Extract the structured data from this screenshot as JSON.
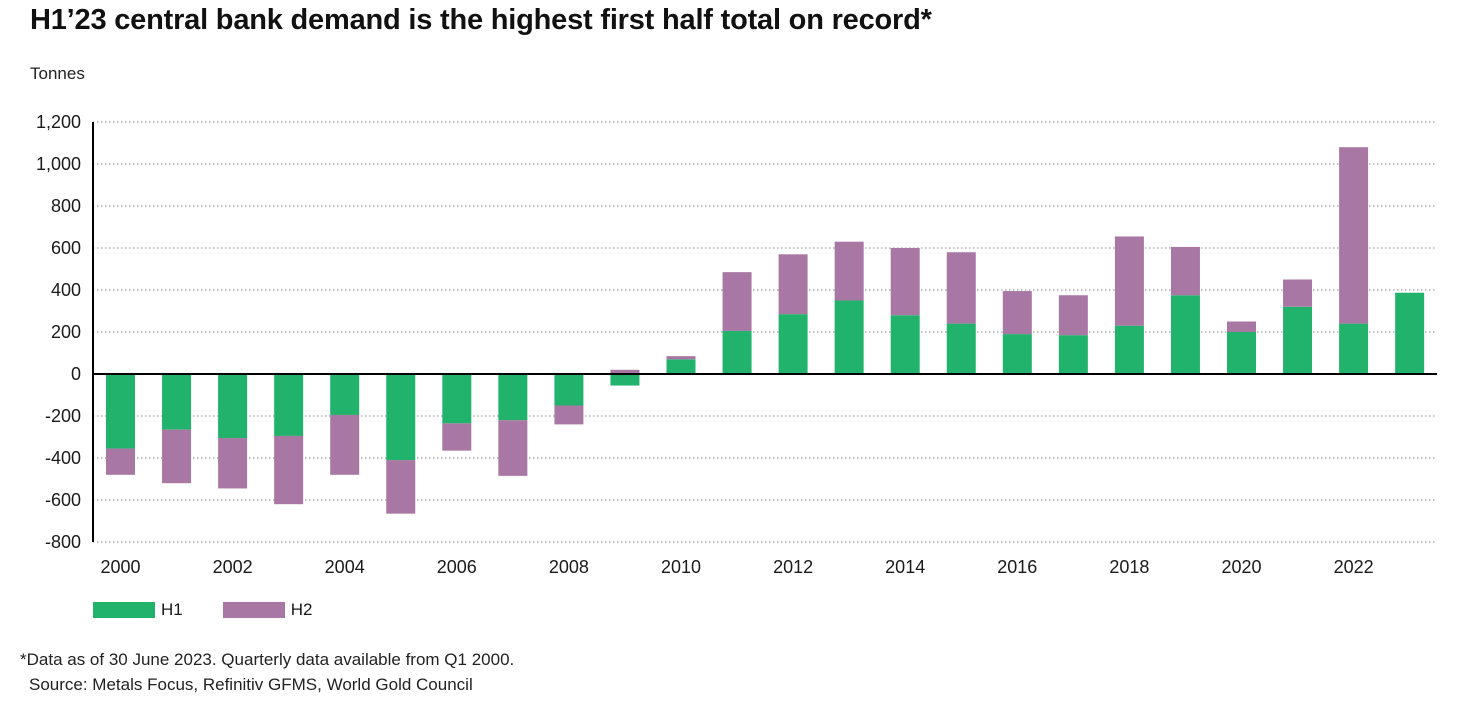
{
  "title": "H1’23 central bank demand is the highest first half total on record*",
  "footnote": "*Data as of 30 June 2023. Quarterly data available from Q1 2000.",
  "source": "Source: Metals Focus, Refinitiv GFMS, World Gold Council",
  "colors": {
    "h1": "#21b36b",
    "h2": "#a877a3",
    "axis": "#000000",
    "grid": "#8a8a8a"
  },
  "chart_data": {
    "type": "bar",
    "stacked": true,
    "ylabel": "Tonnes",
    "xlabel": "",
    "ylim": [
      -800,
      1200
    ],
    "yticks": [
      -800,
      -600,
      -400,
      -200,
      0,
      200,
      400,
      600,
      800,
      1000,
      1200
    ],
    "ytick_labels": [
      "-800",
      "-600",
      "-400",
      "-200",
      "0",
      "200",
      "400",
      "600",
      "800",
      "1,000",
      "1,200"
    ],
    "xtick_labels": [
      "2000",
      "2002",
      "2004",
      "2006",
      "2008",
      "2010",
      "2012",
      "2014",
      "2016",
      "2018",
      "2020",
      "2022"
    ],
    "grid": "horizontal dotted",
    "legend_position": "bottom-left",
    "categories": [
      "2000",
      "2001",
      "2002",
      "2003",
      "2004",
      "2005",
      "2006",
      "2007",
      "2008",
      "2009",
      "2010",
      "2011",
      "2012",
      "2013",
      "2014",
      "2015",
      "2016",
      "2017",
      "2018",
      "2019",
      "2020",
      "2021",
      "2022",
      "2023"
    ],
    "series": [
      {
        "name": "H1",
        "color": "#21b36b",
        "values": [
          -355,
          -265,
          -305,
          -295,
          -195,
          -410,
          -235,
          -220,
          -150,
          -55,
          70,
          205,
          285,
          350,
          280,
          240,
          190,
          185,
          230,
          375,
          200,
          320,
          240,
          387
        ]
      },
      {
        "name": "H2",
        "color": "#a877a3",
        "values": [
          -125,
          -255,
          -240,
          -325,
          -285,
          -255,
          -130,
          -265,
          -90,
          20,
          15,
          280,
          285,
          280,
          320,
          340,
          205,
          190,
          425,
          230,
          50,
          130,
          840,
          null
        ]
      }
    ]
  }
}
